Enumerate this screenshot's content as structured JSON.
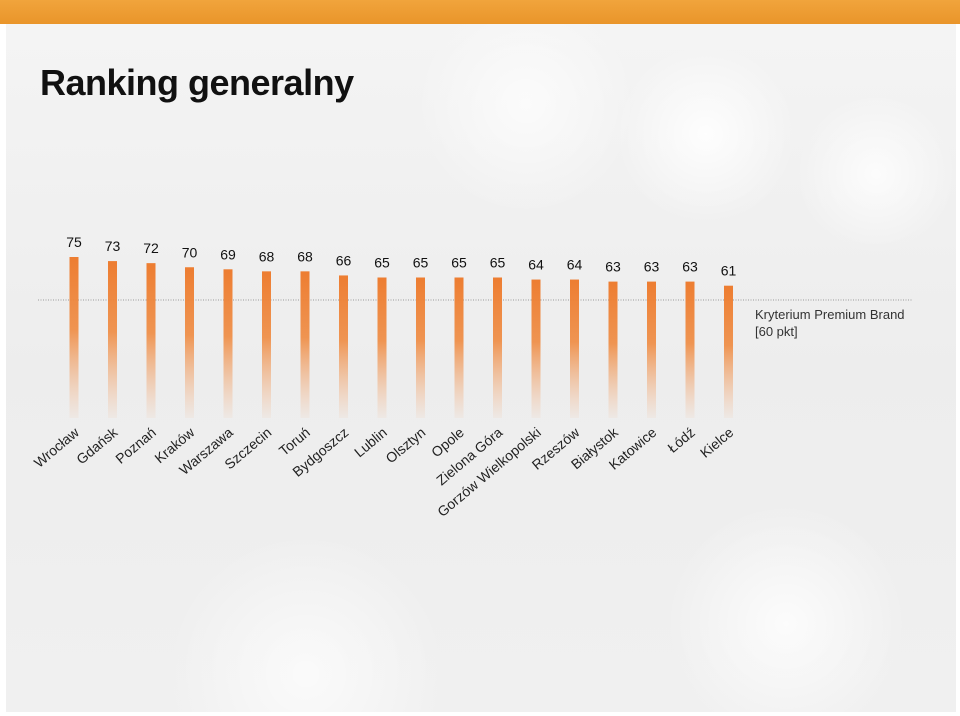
{
  "title": "Ranking generalny",
  "colors": {
    "accent": "#ed7d31",
    "top_bar": "#f0a033"
  },
  "chart_data": {
    "type": "bar",
    "categories": [
      "Wrocław",
      "Gdańsk",
      "Poznań",
      "Kraków",
      "Warszawa",
      "Szczecin",
      "Toruń",
      "Bydgoszcz",
      "Lublin",
      "Olsztyn",
      "Opole",
      "Zielona Góra",
      "Gorzów Wielkopolski",
      "Rzeszów",
      "Białystok",
      "Katowice",
      "Łódź",
      "Kielce"
    ],
    "series": [
      {
        "name": "",
        "values": [
          75,
          73,
          72,
          70,
          69,
          68,
          68,
          66,
          65,
          65,
          65,
          65,
          64,
          64,
          63,
          63,
          63,
          61
        ]
      }
    ],
    "legend": [
      "Kryterium Premium Brand",
      "[60 pkt]"
    ],
    "legend_position": "right"
  }
}
